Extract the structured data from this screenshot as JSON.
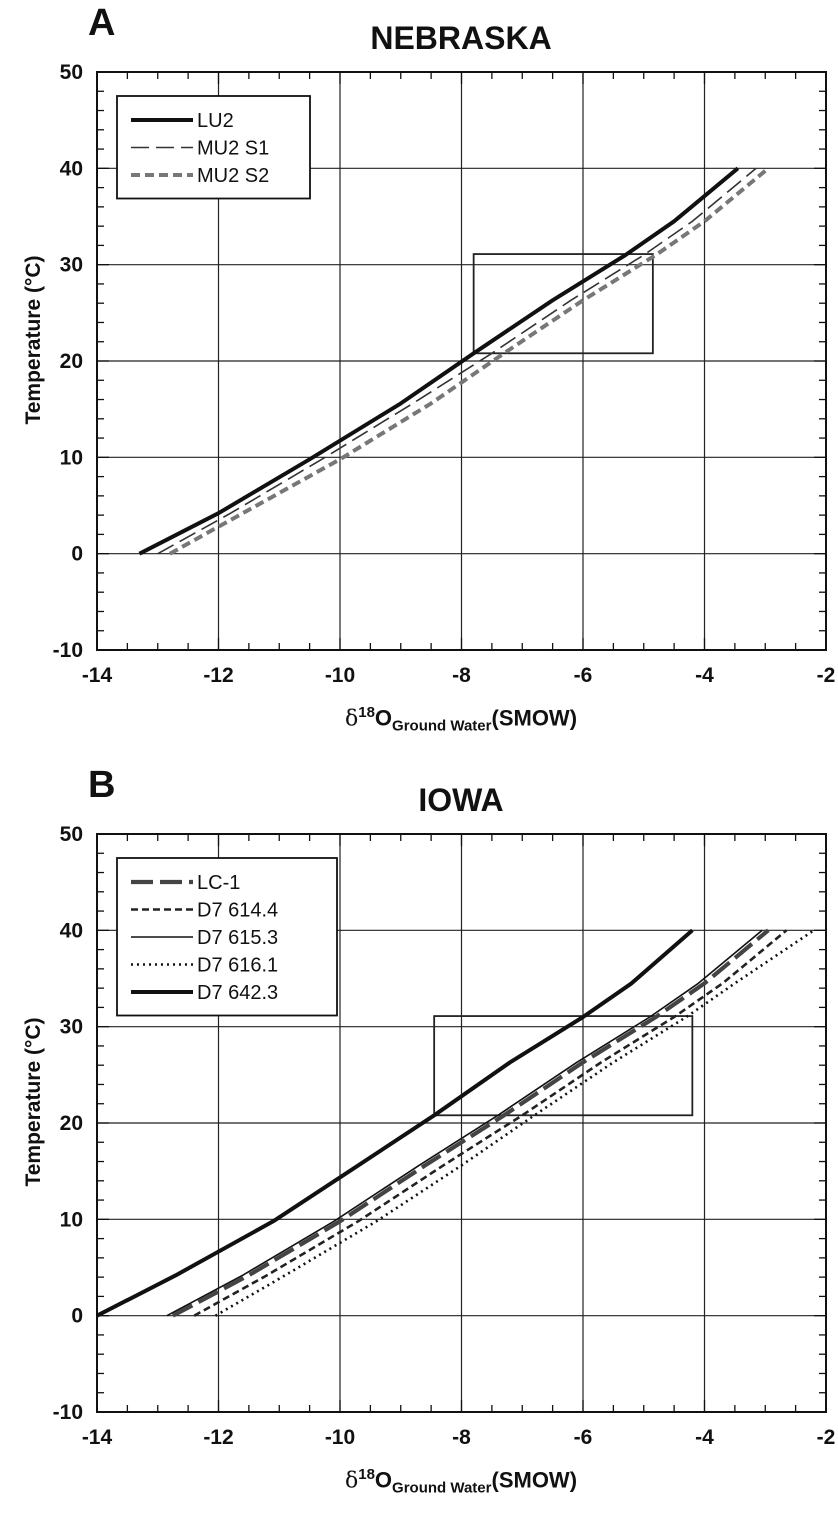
{
  "chart_data": [
    {
      "type": "line",
      "panel_label": "A",
      "title": "NEBRASKA",
      "ylabel": "Temperature (°C)",
      "xlabel_parts": {
        "delta": "δ",
        "sup": "18",
        "main": "O",
        "sub": "Ground Water",
        "suffix": "(SMOW)"
      },
      "xlim": [
        -14,
        -2
      ],
      "ylim": [
        -10,
        50
      ],
      "xticks": [
        -14,
        -12,
        -10,
        -8,
        -6,
        -4,
        -2
      ],
      "yticks": [
        -10,
        0,
        10,
        20,
        30,
        40,
        50
      ],
      "grid": true,
      "legend_position": "top-left",
      "box": {
        "x": [
          -7.8,
          -4.85
        ],
        "y": [
          20.8,
          31.1
        ]
      },
      "series": [
        {
          "name": "LU2",
          "style": "solid-thick",
          "color": "#111111",
          "x": [
            -13.3,
            -12.0,
            -10.5,
            -9.0,
            -7.8,
            -6.5,
            -5.3,
            -4.5,
            -3.45
          ],
          "y": [
            0,
            4.2,
            9.8,
            15.6,
            20.8,
            26.3,
            31.0,
            34.5,
            40
          ]
        },
        {
          "name": "MU2 S1",
          "style": "dashed-thin",
          "color": "#333333",
          "x": [
            -13.0,
            -11.8,
            -10.3,
            -8.8,
            -7.5,
            -6.2,
            -5.0,
            -4.2,
            -3.15
          ],
          "y": [
            0,
            4.2,
            9.8,
            15.6,
            20.8,
            26.3,
            31.0,
            34.5,
            40
          ]
        },
        {
          "name": "MU2 S2",
          "style": "dashed-gray",
          "color": "#777777",
          "x": [
            -12.8,
            -11.6,
            -10.0,
            -8.5,
            -7.3,
            -6.0,
            -4.8,
            -4.0,
            -2.95
          ],
          "y": [
            0,
            4.2,
            9.8,
            15.6,
            20.8,
            26.3,
            31.0,
            34.5,
            40
          ]
        }
      ]
    },
    {
      "type": "line",
      "panel_label": "B",
      "title": "IOWA",
      "ylabel": "Temperature (°C)",
      "xlabel_parts": {
        "delta": "δ",
        "sup": "18",
        "main": "O",
        "sub": "Ground Water",
        "suffix": "(SMOW)"
      },
      "xlim": [
        -14,
        -2
      ],
      "ylim": [
        -10,
        50
      ],
      "xticks": [
        -14,
        -12,
        -10,
        -8,
        -6,
        -4,
        -2
      ],
      "yticks": [
        -10,
        0,
        10,
        20,
        30,
        40,
        50
      ],
      "grid": true,
      "legend_position": "top-left",
      "box": {
        "x": [
          -8.45,
          -4.2
        ],
        "y": [
          20.8,
          31.1
        ]
      },
      "series": [
        {
          "name": "LC-1",
          "style": "long-dash-thick",
          "color": "#444444",
          "x": [
            -12.75,
            -11.5,
            -10.0,
            -8.6,
            -7.3,
            -6.0,
            -4.8,
            -4.0,
            -2.95
          ],
          "y": [
            0,
            4.2,
            9.8,
            15.6,
            20.8,
            26.3,
            31.0,
            34.5,
            40
          ]
        },
        {
          "name": "D7 614.4",
          "style": "short-dash",
          "color": "#222222",
          "x": [
            -12.4,
            -11.2,
            -9.7,
            -8.3,
            -7.0,
            -5.7,
            -4.5,
            -3.7,
            -2.65
          ],
          "y": [
            0,
            4.2,
            9.8,
            15.6,
            20.8,
            26.3,
            31.0,
            34.5,
            40
          ]
        },
        {
          "name": "D7 615.3",
          "style": "solid-thin",
          "color": "#111111",
          "x": [
            -12.85,
            -11.6,
            -10.1,
            -8.7,
            -7.4,
            -6.1,
            -4.9,
            -4.1,
            -3.05
          ],
          "y": [
            0,
            4.2,
            9.8,
            15.6,
            20.8,
            26.3,
            31.0,
            34.5,
            40
          ]
        },
        {
          "name": "D7 616.1",
          "style": "dotted",
          "color": "#111111",
          "x": [
            -12.05,
            -10.9,
            -9.4,
            -8.0,
            -6.8,
            -5.5,
            -4.3,
            -3.5,
            -2.2
          ],
          "y": [
            0,
            4.2,
            9.8,
            15.6,
            20.8,
            26.3,
            31.0,
            34.5,
            40
          ]
        },
        {
          "name": "D7 642.3",
          "style": "solid-thick",
          "color": "#111111",
          "x": [
            -14.0,
            -12.7,
            -11.1,
            -9.7,
            -8.45,
            -7.2,
            -6.0,
            -5.2,
            -4.2
          ],
          "y": [
            0,
            4.2,
            9.8,
            15.6,
            20.8,
            26.3,
            31.0,
            34.5,
            40
          ]
        }
      ]
    }
  ]
}
